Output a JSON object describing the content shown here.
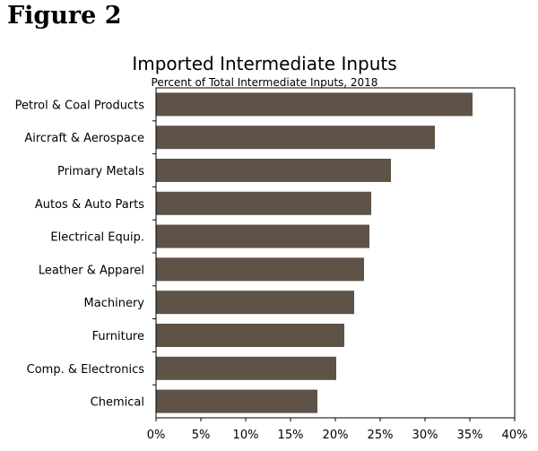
{
  "figure_label": "Figure 2",
  "chart_data": {
    "type": "bar",
    "orientation": "horizontal",
    "title": "Imported Intermediate Inputs",
    "subtitle": "Percent of Total Intermediate Inputs, 2018",
    "categories": [
      "Petrol & Coal Products",
      "Aircraft & Aerospace",
      "Primary Metals",
      "Autos & Auto Parts",
      "Electrical Equip.",
      "Leather & Apparel",
      "Machinery",
      "Furniture",
      "Comp. & Electronics",
      "Chemical"
    ],
    "values": [
      35.3,
      31.1,
      26.2,
      24.0,
      23.8,
      23.2,
      22.1,
      21.0,
      20.1,
      18.0
    ],
    "xlim": [
      0,
      40
    ],
    "x_ticks": [
      0,
      5,
      10,
      15,
      20,
      25,
      30,
      35,
      40
    ],
    "x_tick_labels": [
      "0%",
      "5%",
      "10%",
      "15%",
      "20%",
      "25%",
      "30%",
      "35%",
      "40%"
    ],
    "grid": false,
    "bar_color": "#5f5247"
  }
}
